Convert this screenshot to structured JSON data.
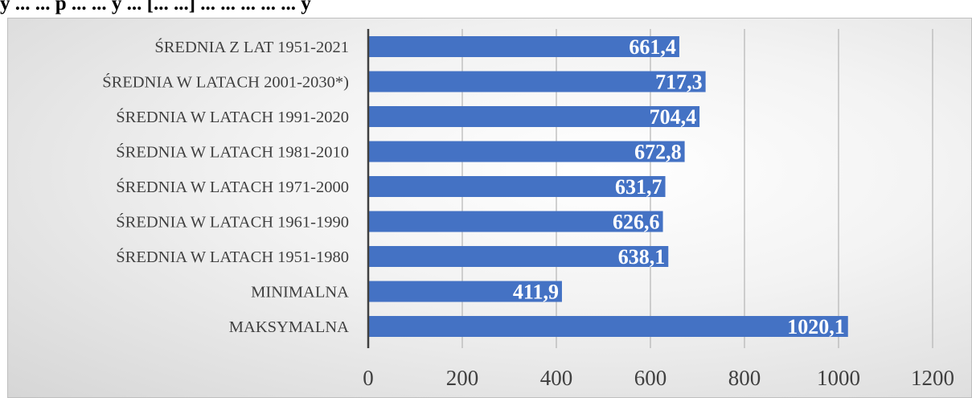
{
  "colors": {
    "bar": "#4472c4",
    "gridline": "#b4b4b4",
    "axis": "#404040",
    "data_label": "#ffffff"
  },
  "chart_data": {
    "type": "bar",
    "orientation": "horizontal",
    "title": "y ... ... p ... ... y ... [... ...] ... ... ... ... ... y",
    "categories": [
      "ŚREDNIA Z LAT 1951-2021",
      "ŚREDNIA W LATACH 2001-2030*)",
      "ŚREDNIA W LATACH 1991-2020",
      "ŚREDNIA W LATACH 1981-2010",
      "ŚREDNIA W LATACH 1971-2000",
      "ŚREDNIA W LATACH 1961-1990",
      "ŚREDNIA W LATACH 1951-1980",
      "MINIMALNA",
      "MAKSYMALNA"
    ],
    "values": [
      661.4,
      717.3,
      704.4,
      672.8,
      631.7,
      626.6,
      638.1,
      411.9,
      1020.1
    ],
    "value_labels": [
      "661,4",
      "717,3",
      "704,4",
      "672,8",
      "631,7",
      "626,6",
      "638,1",
      "411,9",
      "1020,1"
    ],
    "xlim": [
      0,
      1200
    ],
    "x_ticks": [
      0,
      200,
      400,
      600,
      800,
      1000,
      1200
    ],
    "x_tick_labels": [
      "0",
      "200",
      "400",
      "600",
      "800",
      "1000",
      "1200"
    ],
    "grid": true,
    "legend": "none"
  }
}
